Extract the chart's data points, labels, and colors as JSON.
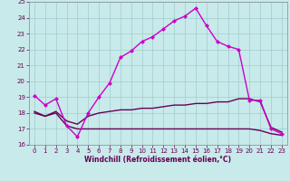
{
  "xlabel": "Windchill (Refroidissement éolien,°C)",
  "background_color": "#c8eaea",
  "grid_color": "#a0cccc",
  "line1_color": "#cc00cc",
  "line2_color": "#660055",
  "background_figure": "#c8eaea",
  "line1_x": [
    0,
    1,
    2,
    3,
    4,
    5,
    6,
    7,
    8,
    9,
    10,
    11,
    12,
    13,
    14,
    15,
    16,
    17,
    18,
    19,
    20,
    21,
    22,
    23
  ],
  "line1_y": [
    19.1,
    18.5,
    18.9,
    17.2,
    16.5,
    18.0,
    19.0,
    19.9,
    21.5,
    21.9,
    22.5,
    22.8,
    23.3,
    23.8,
    24.1,
    24.6,
    23.5,
    22.5,
    22.2,
    22.0,
    18.8,
    18.8,
    17.0,
    16.7
  ],
  "line2_x": [
    0,
    1,
    2,
    3,
    4,
    5,
    6,
    7,
    8,
    9,
    10,
    11,
    12,
    13,
    14,
    15,
    16,
    17,
    18,
    19,
    20,
    21,
    22,
    23
  ],
  "line2_y": [
    18.1,
    17.8,
    18.1,
    17.5,
    17.3,
    17.8,
    18.0,
    18.1,
    18.2,
    18.2,
    18.3,
    18.3,
    18.4,
    18.5,
    18.5,
    18.6,
    18.6,
    18.7,
    18.7,
    18.9,
    18.9,
    18.7,
    17.1,
    16.8
  ],
  "line3_x": [
    0,
    1,
    2,
    3,
    4,
    5,
    6,
    7,
    8,
    9,
    10,
    11,
    12,
    13,
    14,
    15,
    16,
    17,
    18,
    19,
    20,
    21,
    22,
    23
  ],
  "line3_y": [
    18.0,
    17.8,
    18.0,
    17.2,
    17.0,
    17.0,
    17.0,
    17.0,
    17.0,
    17.0,
    17.0,
    17.0,
    17.0,
    17.0,
    17.0,
    17.0,
    17.0,
    17.0,
    17.0,
    17.0,
    17.0,
    16.9,
    16.7,
    16.6
  ],
  "ylim": [
    16,
    25
  ],
  "yticks": [
    16,
    17,
    18,
    19,
    20,
    21,
    22,
    23,
    24,
    25
  ],
  "xticks": [
    0,
    1,
    2,
    3,
    4,
    5,
    6,
    7,
    8,
    9,
    10,
    11,
    12,
    13,
    14,
    15,
    16,
    17,
    18,
    19,
    20,
    21,
    22,
    23
  ],
  "markersize": 2.5,
  "linewidth1": 1.0,
  "linewidth2": 1.0,
  "tick_fontsize": 5.0,
  "xlabel_fontsize": 5.5
}
